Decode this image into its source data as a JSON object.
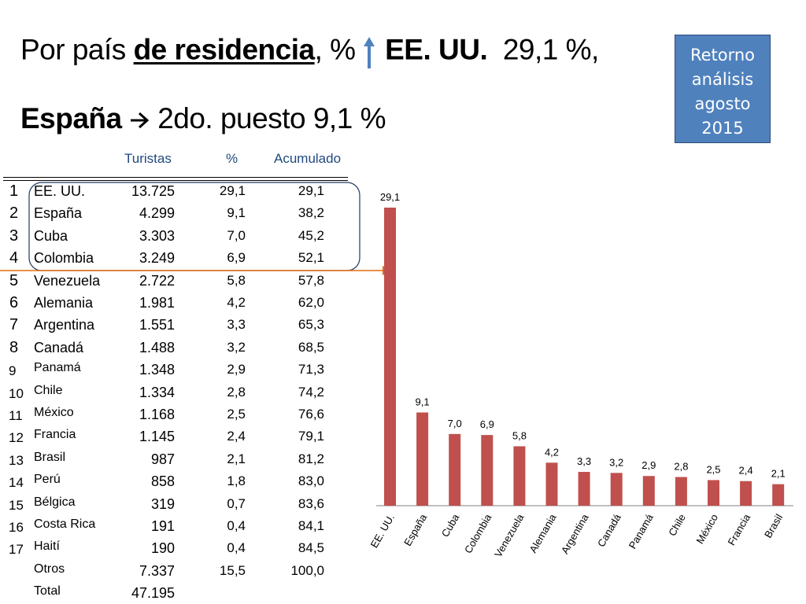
{
  "heading": {
    "line1_a": "Por país ",
    "line1_b": "de residencia",
    "line1_c": ", %",
    "line1_d": "EE. UU.",
    "line1_e": "29,1 %,",
    "line2_a": "España",
    "line2_b": "2do.  puesto 9,1 %"
  },
  "return_button": {
    "label": "Retorno análisis agosto 2015"
  },
  "table": {
    "headers": {
      "tourists": "Turistas",
      "percent": "%",
      "cumulative": "Acumulado"
    },
    "rows": [
      {
        "rank": "1",
        "country": "EE. UU.",
        "tourists": "13.725",
        "percent": "29,1",
        "cumulative": "29,1"
      },
      {
        "rank": "2",
        "country": "España",
        "tourists": "4.299",
        "percent": "9,1",
        "cumulative": "38,2"
      },
      {
        "rank": "3",
        "country": "Cuba",
        "tourists": "3.303",
        "percent": "7,0",
        "cumulative": "45,2"
      },
      {
        "rank": "4",
        "country": "Colombia",
        "tourists": "3.249",
        "percent": "6,9",
        "cumulative": "52,1"
      },
      {
        "rank": "5",
        "country": "Venezuela",
        "tourists": "2.722",
        "percent": "5,8",
        "cumulative": "57,8"
      },
      {
        "rank": "6",
        "country": "Alemania",
        "tourists": "1.981",
        "percent": "4,2",
        "cumulative": "62,0"
      },
      {
        "rank": "7",
        "country": "Argentina",
        "tourists": "1.551",
        "percent": "3,3",
        "cumulative": "65,3"
      },
      {
        "rank": "8",
        "country": "Canadá",
        "tourists": "1.488",
        "percent": "3,2",
        "cumulative": "68,5"
      },
      {
        "rank": "9",
        "country": "Panamá",
        "tourists": "1.348",
        "percent": "2,9",
        "cumulative": "71,3"
      },
      {
        "rank": "10",
        "country": "Chile",
        "tourists": "1.334",
        "percent": "2,8",
        "cumulative": "74,2"
      },
      {
        "rank": "11",
        "country": "México",
        "tourists": "1.168",
        "percent": "2,5",
        "cumulative": "76,6"
      },
      {
        "rank": "12",
        "country": "Francia",
        "tourists": "1.145",
        "percent": "2,4",
        "cumulative": "79,1"
      },
      {
        "rank": "13",
        "country": "Brasil",
        "tourists": "987",
        "percent": "2,1",
        "cumulative": "81,2"
      },
      {
        "rank": "14",
        "country": "Perú",
        "tourists": "858",
        "percent": "1,8",
        "cumulative": "83,0"
      },
      {
        "rank": "15",
        "country": "Bélgica",
        "tourists": "319",
        "percent": "0,7",
        "cumulative": "83,6"
      },
      {
        "rank": "16",
        "country": "Costa Rica",
        "tourists": "191",
        "percent": "0,4",
        "cumulative": "84,1"
      },
      {
        "rank": "17",
        "country": "Haití",
        "tourists": "190",
        "percent": "0,4",
        "cumulative": "84,5"
      },
      {
        "rank": "",
        "country": "Otros",
        "tourists": "7.337",
        "percent": "15,5",
        "cumulative": "100,0"
      },
      {
        "rank": "",
        "country": "Total",
        "tourists": "47.195",
        "percent": "",
        "cumulative": ""
      }
    ]
  },
  "colors": {
    "bar": "#c0504d",
    "header_text": "#1f497d",
    "button_bg": "#4f81bd",
    "highlight_arrow": "#e46c0a",
    "highlight_outline": "#1f3864",
    "up_arrow": "#4f81bd"
  },
  "icons": {
    "up": "up-arrow-icon",
    "right": "right-arrow-icon"
  },
  "chart_data": {
    "type": "bar",
    "categories": [
      "EE. UU.",
      "España",
      "Cuba",
      "Colombia",
      "Venezuela",
      "Alemania",
      "Argentina",
      "Canadá",
      "Panamá",
      "Chile",
      "México",
      "Francia",
      "Brasil"
    ],
    "values": [
      29.1,
      9.1,
      7.0,
      6.9,
      5.8,
      4.2,
      3.3,
      3.2,
      2.9,
      2.8,
      2.5,
      2.4,
      2.1
    ],
    "data_labels": [
      "29,1",
      "9,1",
      "7,0",
      "6,9",
      "5,8",
      "4,2",
      "3,3",
      "3,2",
      "2,9",
      "2,8",
      "2,5",
      "2,4",
      "2,1"
    ],
    "title": "",
    "xlabel": "",
    "ylabel": "",
    "ylim": [
      0,
      29.1
    ],
    "grid": false,
    "legend": "none"
  }
}
